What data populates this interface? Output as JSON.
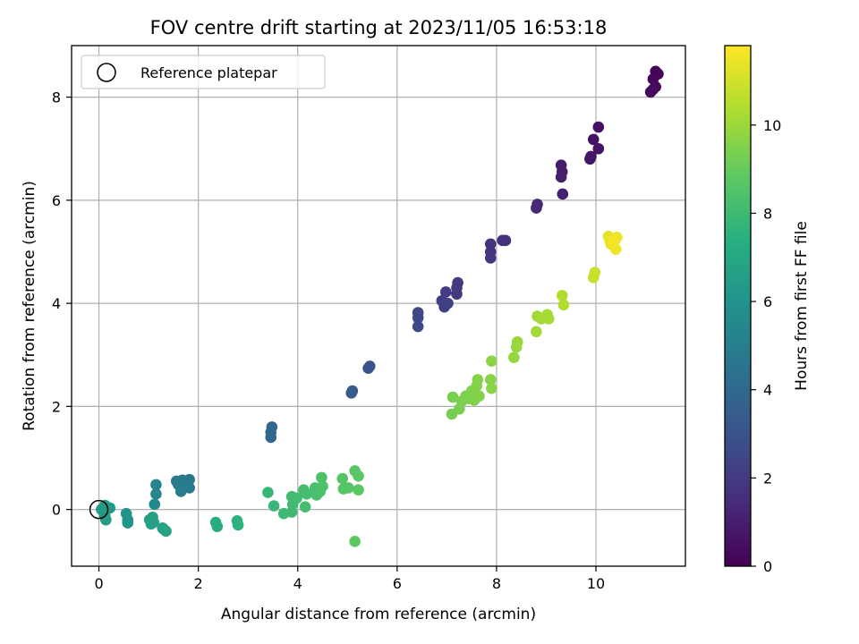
{
  "chart_data": {
    "type": "scatter",
    "title": "FOV centre drift starting at 2023/11/05 16:53:18",
    "xlabel": "Angular distance from reference (arcmin)",
    "ylabel": "Rotation from reference (arcmin)",
    "colorbar_label": "Hours from first FF file",
    "xlim": [
      -0.55,
      11.8
    ],
    "ylim": [
      -1.1,
      9.0
    ],
    "x_ticks": [
      0,
      2,
      4,
      6,
      8,
      10
    ],
    "y_ticks": [
      0,
      2,
      4,
      6,
      8
    ],
    "colorbar_ticks": [
      0,
      2,
      4,
      6,
      8,
      10
    ],
    "colorbar_range": [
      0,
      11.8
    ],
    "colormap": "viridis",
    "grid": true,
    "legend": {
      "placement": "top-left",
      "entries": [
        "Reference platepar"
      ]
    },
    "reference_point": {
      "x": 0,
      "y": 0,
      "label": "Reference platepar"
    },
    "points": [
      {
        "x": 11.2,
        "y": 8.5,
        "c": 0.1
      },
      {
        "x": 11.25,
        "y": 8.45,
        "c": 0.15
      },
      {
        "x": 11.15,
        "y": 8.35,
        "c": 0.2
      },
      {
        "x": 11.2,
        "y": 8.2,
        "c": 0.25
      },
      {
        "x": 11.1,
        "y": 8.1,
        "c": 0.3
      },
      {
        "x": 11.15,
        "y": 8.15,
        "c": 0.32
      },
      {
        "x": 10.05,
        "y": 7.42,
        "c": 0.5
      },
      {
        "x": 9.95,
        "y": 7.18,
        "c": 0.6
      },
      {
        "x": 10.05,
        "y": 7.0,
        "c": 0.65
      },
      {
        "x": 9.9,
        "y": 6.85,
        "c": 0.7
      },
      {
        "x": 9.88,
        "y": 6.8,
        "c": 0.72
      },
      {
        "x": 9.3,
        "y": 6.68,
        "c": 0.9
      },
      {
        "x": 9.32,
        "y": 6.55,
        "c": 0.95
      },
      {
        "x": 9.3,
        "y": 6.45,
        "c": 1.0
      },
      {
        "x": 9.33,
        "y": 6.12,
        "c": 1.05
      },
      {
        "x": 8.82,
        "y": 5.92,
        "c": 1.3
      },
      {
        "x": 8.8,
        "y": 5.85,
        "c": 1.35
      },
      {
        "x": 8.12,
        "y": 5.22,
        "c": 1.6
      },
      {
        "x": 8.18,
        "y": 5.22,
        "c": 1.62
      },
      {
        "x": 7.88,
        "y": 5.15,
        "c": 1.7
      },
      {
        "x": 7.88,
        "y": 5.0,
        "c": 1.72
      },
      {
        "x": 7.88,
        "y": 4.88,
        "c": 1.75
      },
      {
        "x": 7.22,
        "y": 4.4,
        "c": 2.0
      },
      {
        "x": 7.2,
        "y": 4.3,
        "c": 2.02
      },
      {
        "x": 7.2,
        "y": 4.18,
        "c": 2.05
      },
      {
        "x": 6.98,
        "y": 4.22,
        "c": 2.1
      },
      {
        "x": 6.9,
        "y": 4.05,
        "c": 2.15
      },
      {
        "x": 6.98,
        "y": 3.98,
        "c": 2.18
      },
      {
        "x": 6.95,
        "y": 3.93,
        "c": 2.2
      },
      {
        "x": 7.02,
        "y": 4.0,
        "c": 2.22
      },
      {
        "x": 6.42,
        "y": 3.82,
        "c": 2.5
      },
      {
        "x": 6.42,
        "y": 3.72,
        "c": 2.55
      },
      {
        "x": 6.42,
        "y": 3.55,
        "c": 2.6
      },
      {
        "x": 5.45,
        "y": 2.78,
        "c": 3.0
      },
      {
        "x": 5.42,
        "y": 2.74,
        "c": 3.05
      },
      {
        "x": 5.1,
        "y": 2.3,
        "c": 3.3
      },
      {
        "x": 5.08,
        "y": 2.26,
        "c": 3.35
      },
      {
        "x": 3.48,
        "y": 1.6,
        "c": 3.9
      },
      {
        "x": 3.46,
        "y": 1.5,
        "c": 3.95
      },
      {
        "x": 3.46,
        "y": 1.4,
        "c": 4.0
      },
      {
        "x": 1.82,
        "y": 0.58,
        "c": 4.6
      },
      {
        "x": 1.78,
        "y": 0.5,
        "c": 4.65
      },
      {
        "x": 1.82,
        "y": 0.42,
        "c": 4.7
      },
      {
        "x": 1.68,
        "y": 0.57,
        "c": 4.8
      },
      {
        "x": 1.56,
        "y": 0.55,
        "c": 4.85
      },
      {
        "x": 1.6,
        "y": 0.48,
        "c": 4.9
      },
      {
        "x": 1.68,
        "y": 0.4,
        "c": 4.95
      },
      {
        "x": 1.65,
        "y": 0.35,
        "c": 5.0
      },
      {
        "x": 1.15,
        "y": 0.48,
        "c": 5.3
      },
      {
        "x": 1.15,
        "y": 0.3,
        "c": 5.4
      },
      {
        "x": 1.12,
        "y": 0.1,
        "c": 5.5
      },
      {
        "x": 0.55,
        "y": -0.08,
        "c": 6.0
      },
      {
        "x": 0.58,
        "y": -0.2,
        "c": 6.05
      },
      {
        "x": 0.58,
        "y": -0.26,
        "c": 6.1
      },
      {
        "x": 0.12,
        "y": 0.08,
        "c": 6.3
      },
      {
        "x": 0.22,
        "y": 0.03,
        "c": 6.32
      },
      {
        "x": 0.1,
        "y": -0.05,
        "c": 6.35
      },
      {
        "x": 0.12,
        "y": -0.12,
        "c": 6.38
      },
      {
        "x": 0.14,
        "y": -0.2,
        "c": 6.4
      },
      {
        "x": 0.05,
        "y": 0.0,
        "c": 6.42
      },
      {
        "x": 1.02,
        "y": -0.2,
        "c": 6.6
      },
      {
        "x": 1.08,
        "y": -0.15,
        "c": 6.62
      },
      {
        "x": 1.05,
        "y": -0.28,
        "c": 6.65
      },
      {
        "x": 1.1,
        "y": -0.25,
        "c": 6.68
      },
      {
        "x": 1.28,
        "y": -0.36,
        "c": 6.8
      },
      {
        "x": 1.35,
        "y": -0.42,
        "c": 6.82
      },
      {
        "x": 1.3,
        "y": -0.38,
        "c": 6.84
      },
      {
        "x": 2.35,
        "y": -0.25,
        "c": 7.3
      },
      {
        "x": 2.38,
        "y": -0.33,
        "c": 7.32
      },
      {
        "x": 2.78,
        "y": -0.22,
        "c": 7.5
      },
      {
        "x": 2.8,
        "y": -0.3,
        "c": 7.52
      },
      {
        "x": 3.4,
        "y": 0.33,
        "c": 7.8
      },
      {
        "x": 3.52,
        "y": 0.07,
        "c": 7.85
      },
      {
        "x": 3.72,
        "y": -0.08,
        "c": 7.95
      },
      {
        "x": 3.88,
        "y": -0.05,
        "c": 8.0
      },
      {
        "x": 3.9,
        "y": 0.1,
        "c": 8.05
      },
      {
        "x": 3.88,
        "y": 0.25,
        "c": 8.08
      },
      {
        "x": 3.98,
        "y": 0.22,
        "c": 8.1
      },
      {
        "x": 4.12,
        "y": 0.38,
        "c": 8.15
      },
      {
        "x": 4.18,
        "y": 0.3,
        "c": 8.2
      },
      {
        "x": 4.15,
        "y": 0.05,
        "c": 8.22
      },
      {
        "x": 4.35,
        "y": 0.42,
        "c": 8.3
      },
      {
        "x": 4.38,
        "y": 0.28,
        "c": 8.32
      },
      {
        "x": 4.45,
        "y": 0.35,
        "c": 8.35
      },
      {
        "x": 4.48,
        "y": 0.62,
        "c": 8.4
      },
      {
        "x": 4.5,
        "y": 0.45,
        "c": 8.42
      },
      {
        "x": 4.9,
        "y": 0.6,
        "c": 8.6
      },
      {
        "x": 4.92,
        "y": 0.4,
        "c": 8.62
      },
      {
        "x": 5.02,
        "y": 0.42,
        "c": 8.65
      },
      {
        "x": 5.15,
        "y": 0.75,
        "c": 8.7
      },
      {
        "x": 5.22,
        "y": 0.65,
        "c": 8.72
      },
      {
        "x": 5.22,
        "y": 0.38,
        "c": 8.75
      },
      {
        "x": 5.15,
        "y": -0.62,
        "c": 8.8
      },
      {
        "x": 7.1,
        "y": 1.85,
        "c": 9.3
      },
      {
        "x": 7.12,
        "y": 2.18,
        "c": 9.32
      },
      {
        "x": 7.25,
        "y": 1.95,
        "c": 9.35
      },
      {
        "x": 7.3,
        "y": 2.1,
        "c": 9.4
      },
      {
        "x": 7.38,
        "y": 2.2,
        "c": 9.42
      },
      {
        "x": 7.45,
        "y": 2.15,
        "c": 9.45
      },
      {
        "x": 7.5,
        "y": 2.3,
        "c": 9.48
      },
      {
        "x": 7.55,
        "y": 2.12,
        "c": 9.5
      },
      {
        "x": 7.6,
        "y": 2.4,
        "c": 9.52
      },
      {
        "x": 7.62,
        "y": 2.52,
        "c": 9.55
      },
      {
        "x": 7.65,
        "y": 2.2,
        "c": 9.57
      },
      {
        "x": 7.88,
        "y": 2.52,
        "c": 9.65
      },
      {
        "x": 7.9,
        "y": 2.35,
        "c": 9.67
      },
      {
        "x": 7.9,
        "y": 2.88,
        "c": 9.7
      },
      {
        "x": 8.35,
        "y": 2.95,
        "c": 9.9
      },
      {
        "x": 8.4,
        "y": 3.15,
        "c": 9.92
      },
      {
        "x": 8.42,
        "y": 3.25,
        "c": 9.95
      },
      {
        "x": 8.8,
        "y": 3.45,
        "c": 10.1
      },
      {
        "x": 8.82,
        "y": 3.75,
        "c": 10.12
      },
      {
        "x": 8.9,
        "y": 3.7,
        "c": 10.15
      },
      {
        "x": 8.95,
        "y": 3.72,
        "c": 10.18
      },
      {
        "x": 9.02,
        "y": 3.78,
        "c": 10.2
      },
      {
        "x": 9.05,
        "y": 3.7,
        "c": 10.22
      },
      {
        "x": 9.32,
        "y": 4.15,
        "c": 10.4
      },
      {
        "x": 9.35,
        "y": 3.97,
        "c": 10.42
      },
      {
        "x": 9.95,
        "y": 4.5,
        "c": 10.8
      },
      {
        "x": 9.98,
        "y": 4.6,
        "c": 10.82
      },
      {
        "x": 10.25,
        "y": 5.3,
        "c": 11.3
      },
      {
        "x": 10.28,
        "y": 5.22,
        "c": 11.35
      },
      {
        "x": 10.3,
        "y": 5.15,
        "c": 11.4
      },
      {
        "x": 10.4,
        "y": 5.25,
        "c": 11.45
      },
      {
        "x": 10.42,
        "y": 5.28,
        "c": 11.5
      },
      {
        "x": 10.4,
        "y": 5.05,
        "c": 11.55
      },
      {
        "x": 10.35,
        "y": 5.2,
        "c": 11.6
      }
    ]
  }
}
